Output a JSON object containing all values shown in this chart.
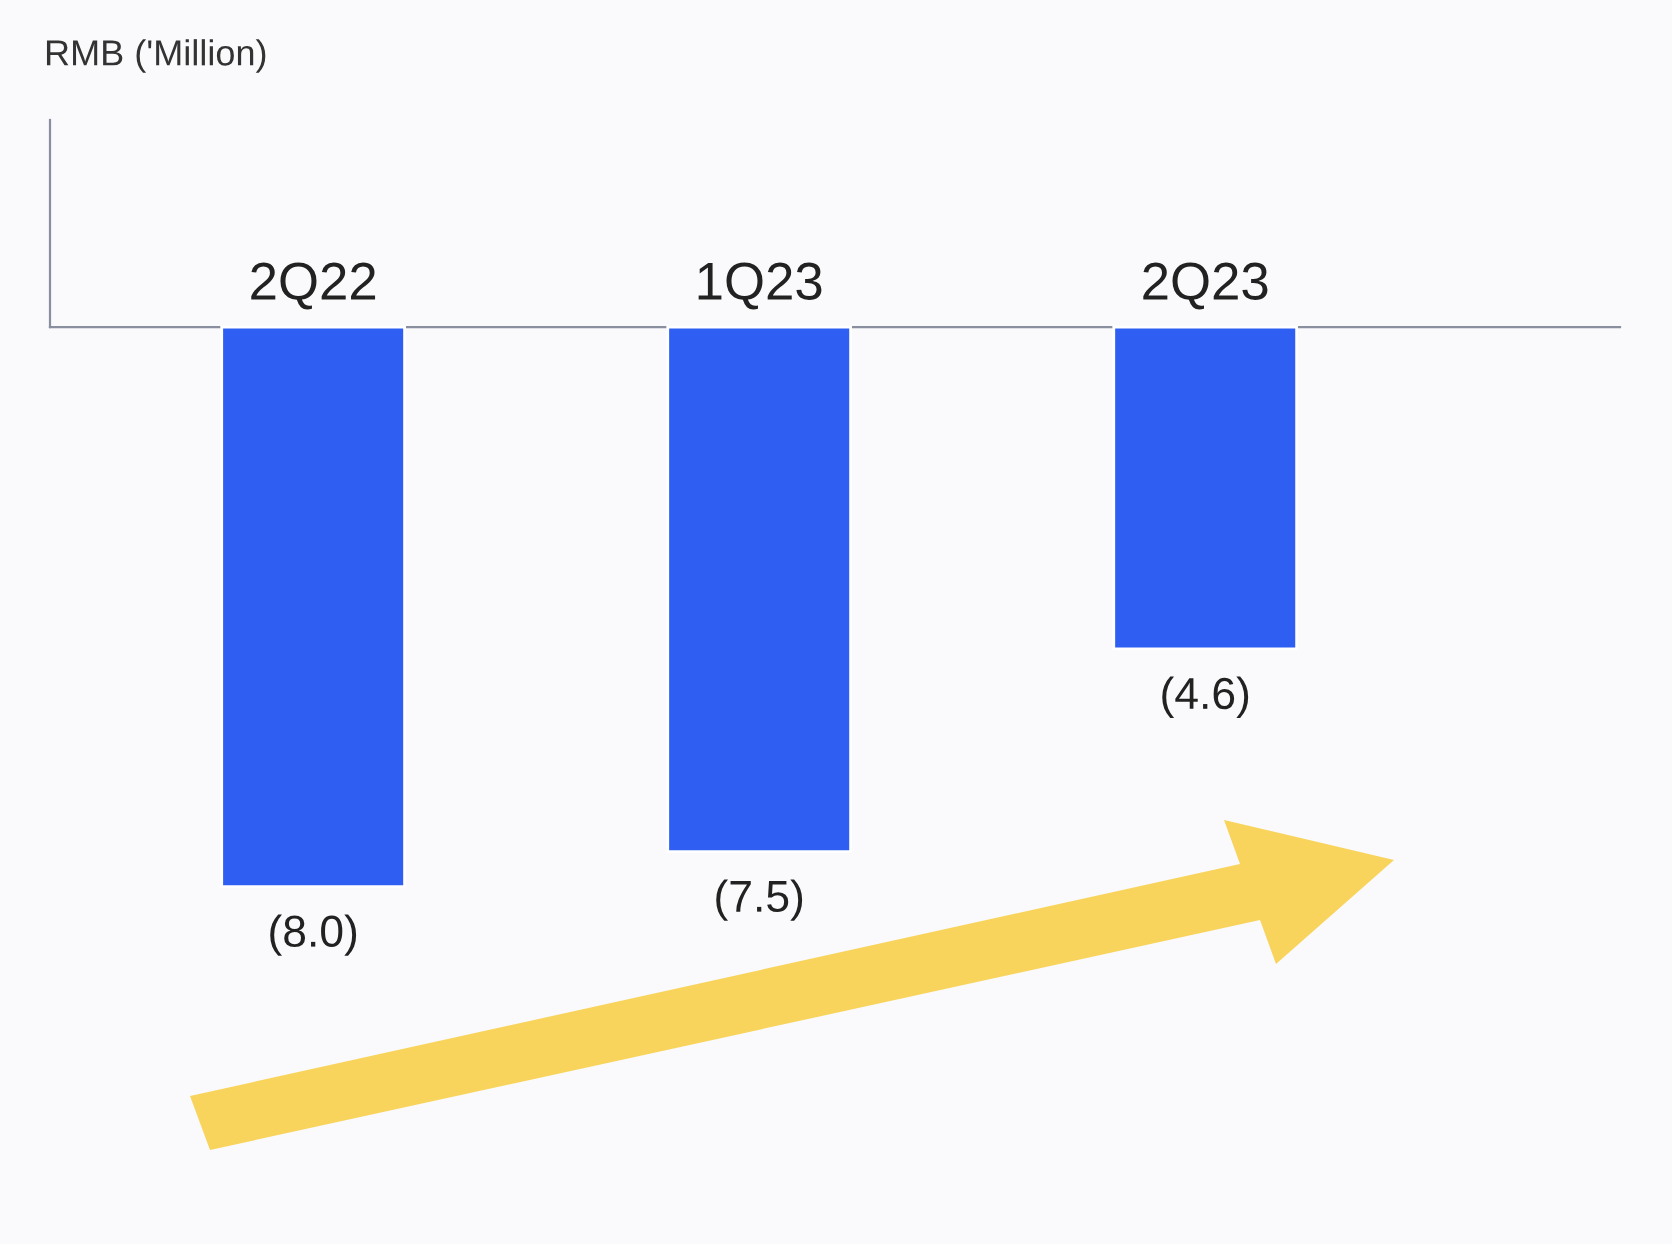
{
  "chart_data": {
    "type": "bar",
    "annotations": [
      "RMB ('Million)"
    ],
    "categories": [
      "2Q22",
      "1Q23",
      "2Q23"
    ],
    "values": [
      -8.0,
      -7.5,
      -4.6
    ],
    "value_labels": [
      "(8.0)",
      "(7.5)",
      "(4.6)"
    ],
    "color": "#2f5ff2",
    "grid": false,
    "legend": false
  }
}
